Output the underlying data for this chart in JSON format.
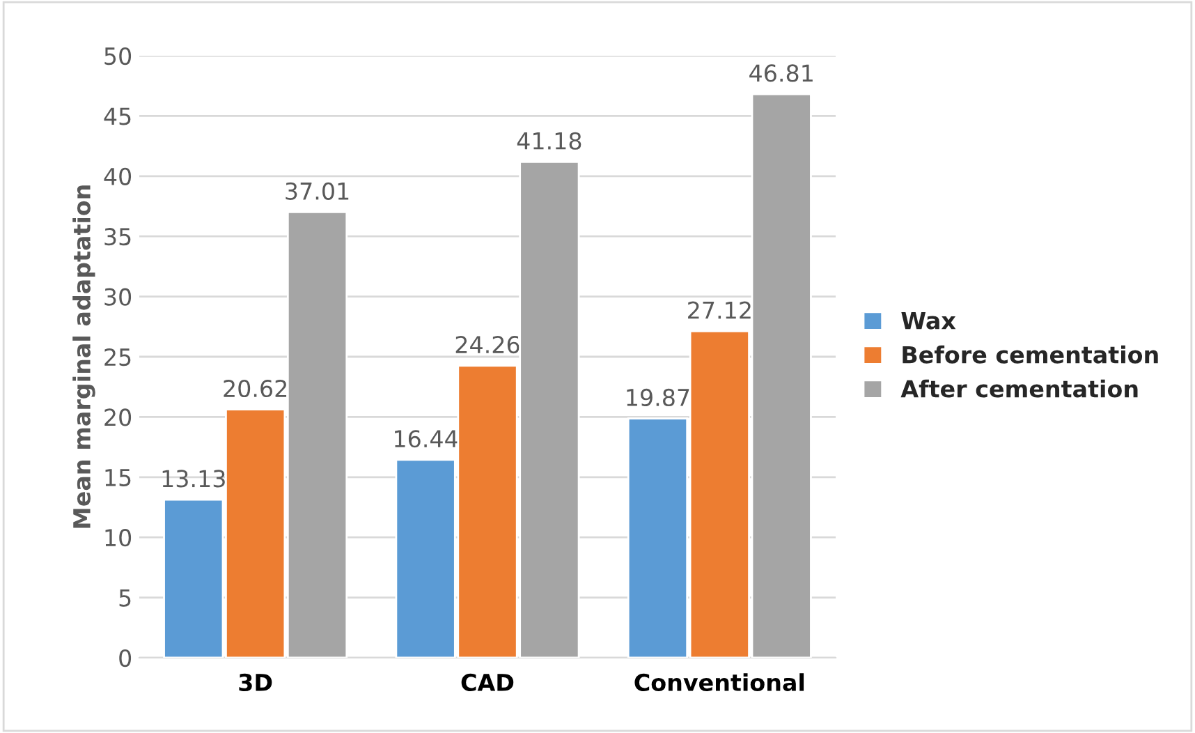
{
  "chart_data": {
    "type": "bar",
    "ylabel": "Mean marginal adaptation",
    "categories": [
      "3D",
      "CAD",
      "Conventional"
    ],
    "series": [
      {
        "name": "Wax",
        "color": "#5b9bd5",
        "values": [
          13.13,
          16.44,
          19.87
        ]
      },
      {
        "name": "Before cementation",
        "color": "#ed7d31",
        "values": [
          20.62,
          24.26,
          27.12
        ]
      },
      {
        "name": "After cementation",
        "color": "#a5a5a5",
        "values": [
          37.01,
          41.18,
          46.81
        ]
      }
    ],
    "ylim": [
      0,
      50
    ],
    "yticks": [
      0,
      5,
      10,
      15,
      20,
      25,
      30,
      35,
      40,
      45,
      50
    ],
    "grid": "y",
    "legend": "right",
    "data_labels": true
  }
}
